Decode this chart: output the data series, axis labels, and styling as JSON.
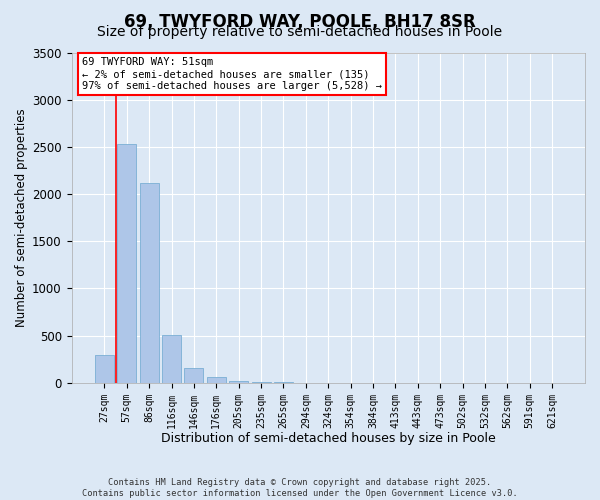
{
  "title": "69, TWYFORD WAY, POOLE, BH17 8SR",
  "subtitle": "Size of property relative to semi-detached houses in Poole",
  "xlabel": "Distribution of semi-detached houses by size in Poole",
  "ylabel": "Number of semi-detached properties",
  "categories": [
    "27sqm",
    "57sqm",
    "86sqm",
    "116sqm",
    "146sqm",
    "176sqm",
    "205sqm",
    "235sqm",
    "265sqm",
    "294sqm",
    "324sqm",
    "354sqm",
    "384sqm",
    "413sqm",
    "443sqm",
    "473sqm",
    "502sqm",
    "532sqm",
    "562sqm",
    "591sqm",
    "621sqm"
  ],
  "values": [
    300,
    2530,
    2120,
    510,
    160,
    60,
    20,
    10,
    5,
    3,
    2,
    1,
    1,
    0,
    0,
    0,
    0,
    0,
    0,
    0,
    0
  ],
  "ylim": [
    0,
    3500
  ],
  "bar_color": "#aec6e8",
  "bar_edgecolor": "#7aafd4",
  "redline_x": 0.5,
  "annotation_title": "69 TWYFORD WAY: 51sqm",
  "annotation_line1": "← 2% of semi-detached houses are smaller (135)",
  "annotation_line2": "97% of semi-detached houses are larger (5,528) →",
  "footer1": "Contains HM Land Registry data © Crown copyright and database right 2025.",
  "footer2": "Contains public sector information licensed under the Open Government Licence v3.0.",
  "background_color": "#dce8f5",
  "plot_background": "#dce8f5",
  "grid_color": "#ffffff",
  "title_fontsize": 12,
  "subtitle_fontsize": 10,
  "yticks": [
    0,
    500,
    1000,
    1500,
    2000,
    2500,
    3000,
    3500
  ]
}
